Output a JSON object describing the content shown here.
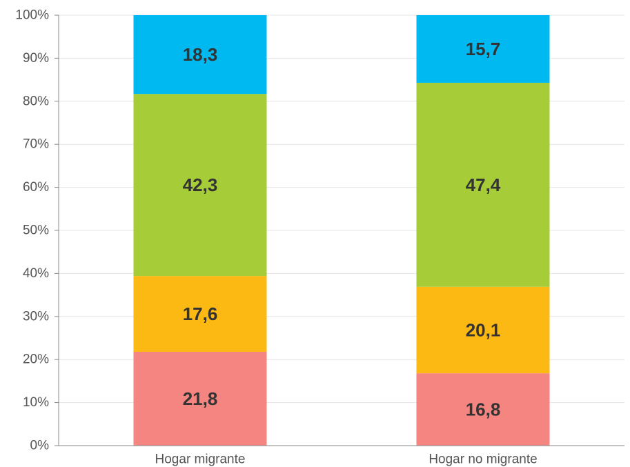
{
  "chart_data": {
    "type": "bar",
    "stacked": true,
    "orientation": "vertical",
    "categories": [
      "Hogar migrante",
      "Hogar no migrante"
    ],
    "series": [
      {
        "values": [
          21.8,
          16.8
        ],
        "labels": [
          "21,8",
          "16,8"
        ],
        "color": "#F48580"
      },
      {
        "values": [
          17.6,
          20.1
        ],
        "labels": [
          "17,6",
          "20,1"
        ],
        "color": "#FCB813"
      },
      {
        "values": [
          42.3,
          47.4
        ],
        "labels": [
          "42,3",
          "47,4"
        ],
        "color": "#A6CD38"
      },
      {
        "values": [
          18.3,
          15.7
        ],
        "labels": [
          "18,3",
          "15,7"
        ],
        "color": "#00B9F0"
      }
    ],
    "title": "",
    "xlabel": "",
    "ylabel": "",
    "ylim": [
      0,
      100
    ],
    "yticks": [
      "0%",
      "10%",
      "20%",
      "30%",
      "40%",
      "50%",
      "60%",
      "70%",
      "80%",
      "90%",
      "100%"
    ],
    "grid": true,
    "legend": "none"
  }
}
